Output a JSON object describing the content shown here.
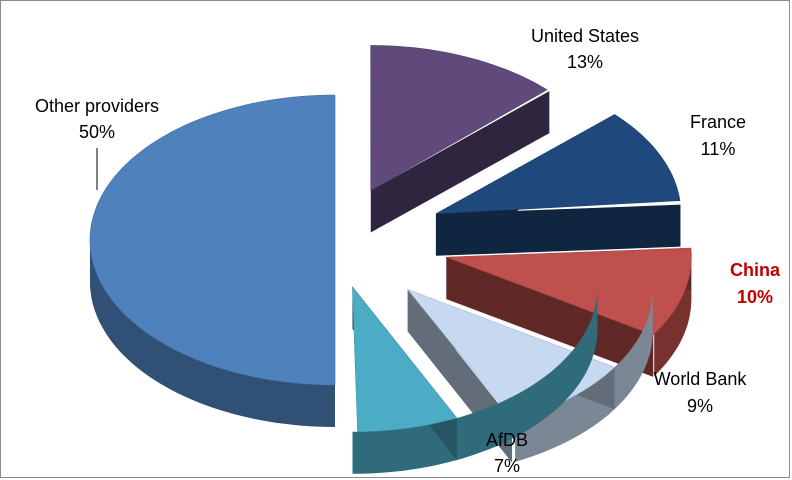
{
  "chart_data": {
    "type": "pie",
    "style": "3d-exploded",
    "title": "",
    "legend": "none",
    "slices": [
      {
        "label": "Other providers",
        "value": 50,
        "display": "50%",
        "color": "#4f81bd"
      },
      {
        "label": "United States",
        "value": 13,
        "display": "13%",
        "color": "#604a7b"
      },
      {
        "label": "France",
        "value": 11,
        "display": "11%",
        "color": "#1f497d"
      },
      {
        "label": "China",
        "value": 10,
        "display": "10%",
        "color": "#c0504d",
        "highlight": true,
        "label_color": "#c00000"
      },
      {
        "label": "World Bank",
        "value": 9,
        "display": "9%",
        "color": "#c6d9f1"
      },
      {
        "label": "AfDB",
        "value": 7,
        "display": "7%",
        "color": "#4bacc6"
      }
    ]
  }
}
